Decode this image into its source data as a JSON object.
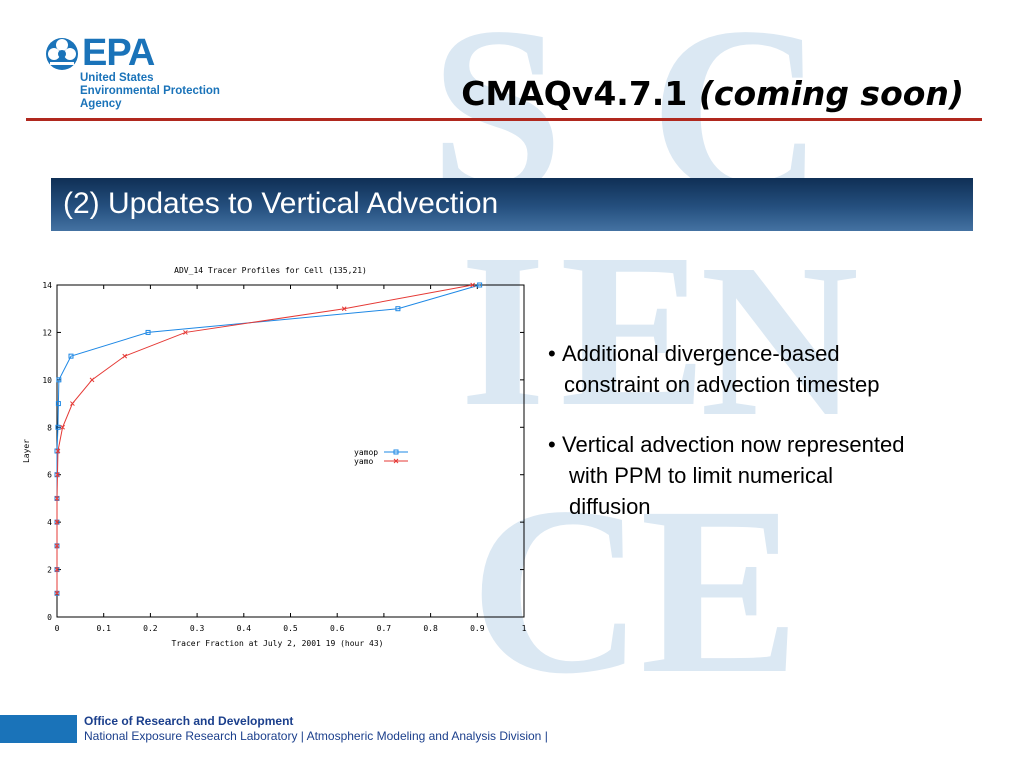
{
  "brand": {
    "logo_word": "EPA",
    "logo_lines": [
      "United States",
      "Environmental Protection",
      "Agency"
    ],
    "colors": {
      "epa_blue": "#1a73b9",
      "accent_red": "#b0281e",
      "banner_dark": "#0f2f55",
      "banner_light": "#4472a2",
      "watermark": "#dbe8f3"
    }
  },
  "watermark": [
    "S",
    "C",
    "I",
    "E",
    "N",
    "C",
    "E"
  ],
  "slide": {
    "title_main": "CMAQv4.7.1",
    "title_italic": "(coming soon)",
    "section_heading": "(2) Updates to Vertical Advection"
  },
  "bullets": [
    {
      "marker": "•",
      "lines": [
        "Additional divergence-based",
        "constraint on advection timestep"
      ]
    },
    {
      "marker": "•",
      "lines": [
        "Vertical advection now represented",
        "with PPM to limit numerical",
        "diffusion"
      ]
    }
  ],
  "footer": {
    "org": "Office of Research and Development",
    "lab": "National Exposure Research Laboratory | Atmospheric Modeling and Analysis Division |"
  },
  "chart_data": {
    "type": "line",
    "title": "ADV_14 Tracer Profiles for Cell (135,21)",
    "xlabel": "Tracer Fraction at July 2, 2001 19 (hour 43)",
    "ylabel": "Layer",
    "xlim": [
      0,
      1
    ],
    "ylim": [
      0,
      14
    ],
    "xticks": [
      "0",
      "0.1",
      "0.2",
      "0.3",
      "0.4",
      "0.5",
      "0.6",
      "0.7",
      "0.8",
      "0.9",
      "1"
    ],
    "yticks": [
      "0",
      "2",
      "4",
      "6",
      "8",
      "10",
      "12",
      "14"
    ],
    "grid": false,
    "legend_position": "middle-right",
    "series": [
      {
        "name": "yamop",
        "color": "#1e88e5",
        "marker": "square",
        "x": [
          0.0,
          0.0,
          0.0,
          0.0,
          0.0,
          0.0,
          0.0,
          0.002,
          0.003,
          0.004,
          0.03,
          0.195,
          0.73,
          0.905
        ],
        "y": [
          1,
          2,
          3,
          4,
          5,
          6,
          7,
          8,
          9,
          10,
          11,
          12,
          13,
          14
        ]
      },
      {
        "name": "yamo",
        "color": "#e53935",
        "marker": "x",
        "x": [
          0.0,
          0.0,
          0.0,
          0.0,
          0.0,
          0.001,
          0.002,
          0.012,
          0.033,
          0.075,
          0.145,
          0.275,
          0.615,
          0.89
        ],
        "y": [
          1,
          2,
          3,
          4,
          5,
          6,
          7,
          8,
          9,
          10,
          11,
          12,
          13,
          14
        ]
      }
    ]
  }
}
